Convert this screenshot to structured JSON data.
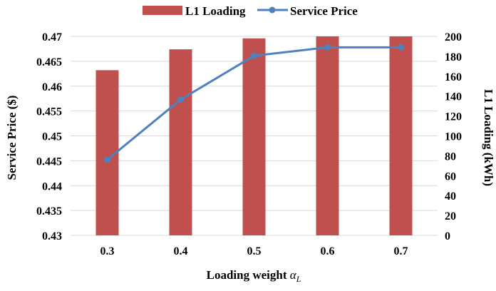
{
  "chart_data": {
    "type": "bar+line",
    "title": "",
    "categories": [
      "0.3",
      "0.4",
      "0.5",
      "0.6",
      "0.7"
    ],
    "series": [
      {
        "name": "L1 Loading",
        "type": "bar",
        "axis": "right",
        "color": "#c0504d",
        "values": [
          166,
          187,
          198,
          200,
          200
        ]
      },
      {
        "name": "Service Price",
        "type": "line",
        "axis": "left",
        "color": "#4f81bd",
        "values": [
          0.4452,
          0.4573,
          0.4661,
          0.4678,
          0.4678
        ]
      }
    ],
    "xlabel_text": "Loading weight ",
    "xlabel_symbol": "α",
    "xlabel_subscript": "L",
    "ylabel_left": "Service Price ($)",
    "ylabel_right": "L1 Loading (kWh)",
    "ylim_left": [
      0.43,
      0.47
    ],
    "ylim_right": [
      0,
      200
    ],
    "yticks_left": [
      "0.43",
      "0.435",
      "0.44",
      "0.445",
      "0.45",
      "0.455",
      "0.46",
      "0.465",
      "0.47"
    ],
    "yticks_right": [
      "0",
      "20",
      "40",
      "60",
      "80",
      "100",
      "120",
      "140",
      "160",
      "180",
      "200"
    ],
    "grid": true,
    "legend_position": "top-center"
  }
}
